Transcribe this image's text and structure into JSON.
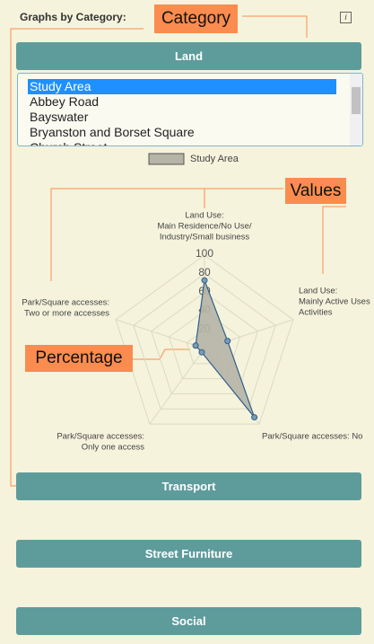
{
  "header": {
    "title": "Graphs by Category:",
    "info_icon": "i"
  },
  "annotations": [
    "Category",
    "Values",
    "Percentage"
  ],
  "sections": [
    "Land",
    "Transport",
    "Street Furniture",
    "Social"
  ],
  "list": {
    "items": [
      "Study Area",
      "Abbey Road",
      "Bayswater",
      "Bryanston and Borset Square",
      "Church Street"
    ],
    "selected": 0
  },
  "chart_data": {
    "type": "radar",
    "categories": [
      [
        "Land Use:",
        "Main Residence/No Use/",
        "Industry/Small business"
      ],
      [
        "Land Use:",
        "Mainly Active Uses",
        "Activities"
      ],
      [
        "Park/Square accesses: No"
      ],
      [
        "Park/Square accesses:",
        "Only one access"
      ],
      [
        "Park/Square accesses:",
        "Two or more accesses"
      ]
    ],
    "series": [
      {
        "name": "Study Area",
        "color": "#b5b4a6",
        "values": [
          73,
          26,
          91,
          5,
          10
        ]
      }
    ],
    "rlim": [
      0,
      100
    ],
    "rticks": [
      20,
      40,
      60,
      80,
      100
    ],
    "grid": true
  }
}
